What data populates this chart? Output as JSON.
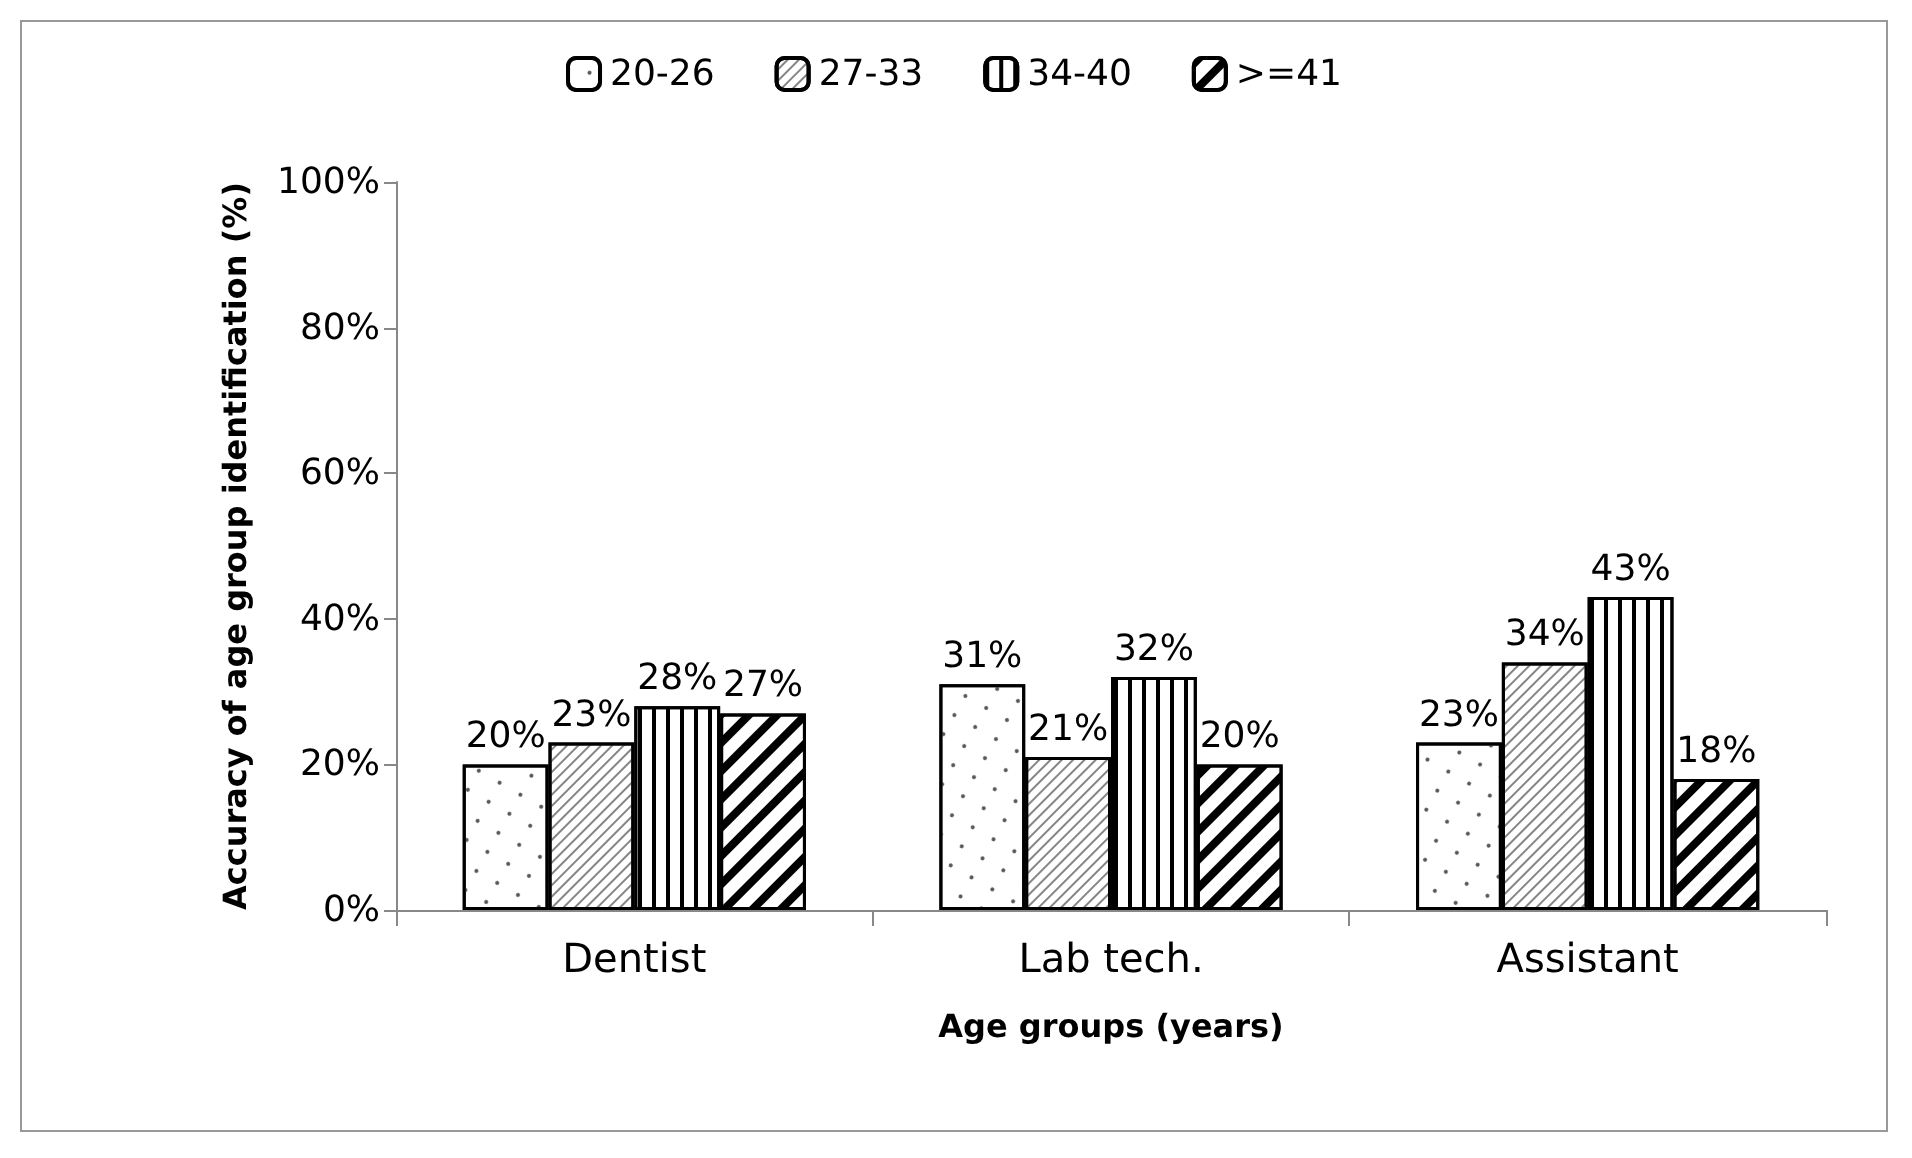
{
  "chart_data": {
    "type": "bar",
    "categories": [
      "Dentist",
      "Lab tech.",
      "Assistant"
    ],
    "series": [
      {
        "name": "20-26",
        "color": "#ffffff",
        "values": [
          20,
          31,
          23
        ],
        "value_labels": [
          "20%",
          "31%",
          "23%"
        ]
      },
      {
        "name": "27-33",
        "color": "#ffffff",
        "values": [
          23,
          21,
          34
        ],
        "value_labels": [
          "23%",
          "21%",
          "34%"
        ]
      },
      {
        "name": "34-40",
        "color": "#ffffff",
        "values": [
          28,
          32,
          43
        ],
        "value_labels": [
          "28%",
          "32%",
          "43%"
        ]
      },
      {
        "name": ">=41",
        "color": "#ffffff",
        "values": [
          27,
          20,
          18
        ],
        "value_labels": [
          "27%",
          "20%",
          "18%"
        ]
      }
    ],
    "xlabel": "Age groups (years)",
    "ylabel": "Accuracy of age group identification (%)",
    "ylim": [
      0,
      100
    ],
    "yticks": [
      {
        "value": 0,
        "label": "0%"
      },
      {
        "value": 20,
        "label": "20%"
      },
      {
        "value": 40,
        "label": "40%"
      },
      {
        "value": 60,
        "label": "60%"
      },
      {
        "value": 80,
        "label": "80%"
      },
      {
        "value": 100,
        "label": "100%"
      }
    ],
    "grid": false,
    "legend": "top"
  }
}
